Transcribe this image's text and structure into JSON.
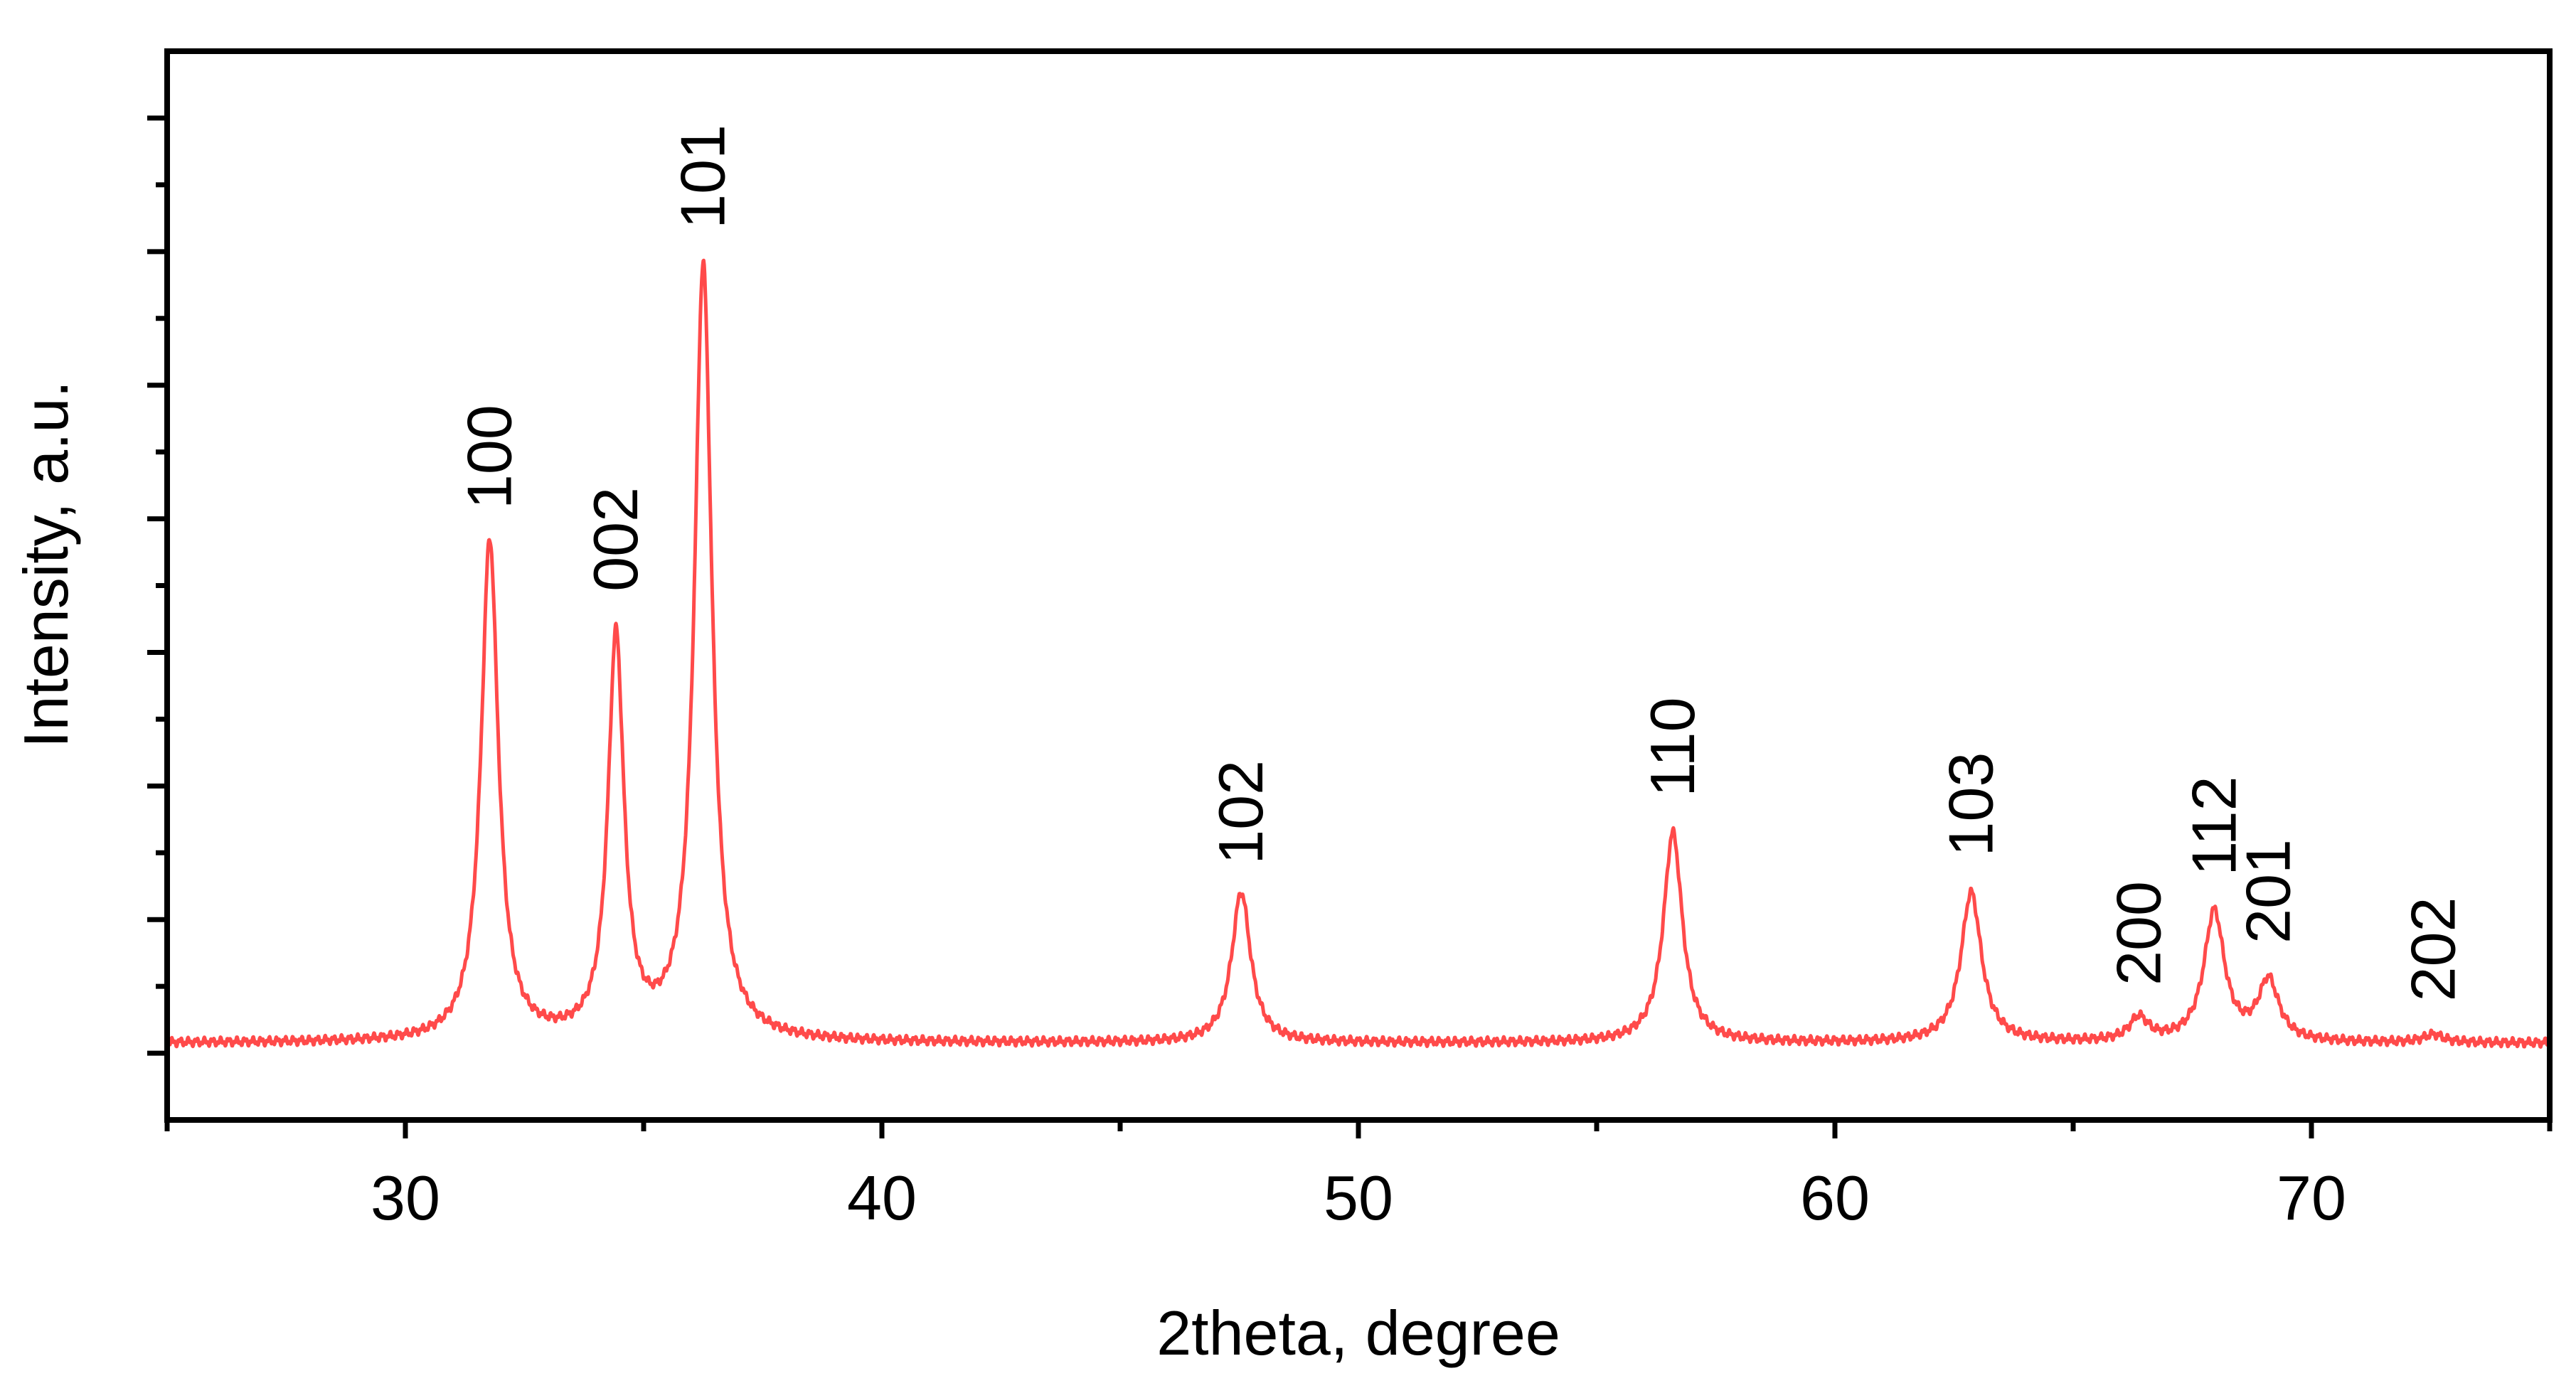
{
  "chart_data": {
    "type": "line",
    "title": "",
    "xlabel": "2theta, degree",
    "ylabel": "Intensity, a.u.",
    "xlim": [
      25,
      75
    ],
    "ylim": [
      -1.0,
      15.0
    ],
    "x_ticks": [
      30,
      40,
      50,
      60,
      70
    ],
    "x_minor_ticks": [
      25,
      35,
      45,
      55,
      65,
      75
    ],
    "y_major_ticks": [
      0,
      2,
      4,
      6,
      8,
      10,
      12,
      14
    ],
    "y_minor_ticks": [
      1,
      3,
      5,
      7,
      9,
      11,
      13
    ],
    "y_tick_labels_shown": false,
    "grid": false,
    "series": [
      {
        "color": "#ff4a4a",
        "baseline": 0.15,
        "peaks": [
          {
            "label": "100",
            "x": 31.77,
            "height": 7.5,
            "width": 0.22
          },
          {
            "label": "002",
            "x": 34.42,
            "height": 6.0,
            "width": 0.2
          },
          {
            "label": "101",
            "x": 36.25,
            "height": 11.6,
            "width": 0.22
          },
          {
            "label": "102",
            "x": 47.54,
            "height": 2.25,
            "width": 0.24
          },
          {
            "label": "110",
            "x": 56.6,
            "height": 3.15,
            "width": 0.24
          },
          {
            "label": "103",
            "x": 62.86,
            "height": 2.25,
            "width": 0.26
          },
          {
            "label": "200",
            "x": 66.38,
            "height": 0.35,
            "width": 0.24
          },
          {
            "label": "112",
            "x": 67.96,
            "height": 1.95,
            "width": 0.26
          },
          {
            "label": "201",
            "x": 69.1,
            "height": 0.9,
            "width": 0.26
          },
          {
            "label": "202",
            "x": 72.56,
            "height": 0.12,
            "width": 0.25
          }
        ]
      }
    ]
  }
}
